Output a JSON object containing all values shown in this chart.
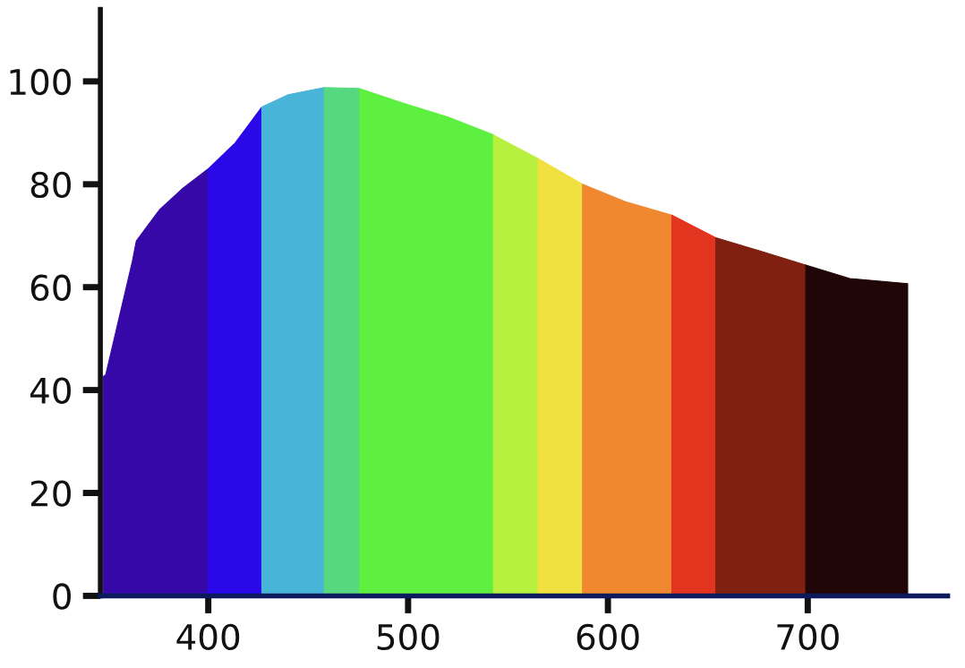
{
  "chart_data": {
    "type": "area",
    "series": [
      {
        "color": "#3608a8",
        "x": [
          347.4,
          348.7,
          362,
          364,
          375.5,
          386.6,
          400
        ],
        "values": [
          42.6,
          43,
          65,
          69,
          75,
          79,
          83
        ]
      },
      {
        "color": "#2a08e8",
        "x": [
          400,
          413.4,
          426.8
        ],
        "values": [
          83,
          88,
          95
        ]
      },
      {
        "color": "#48b4d8",
        "x": [
          426.8,
          440,
          458
        ],
        "values": [
          95,
          97.4,
          98.8
        ]
      },
      {
        "color": "#55d880",
        "x": [
          458,
          475.8
        ],
        "values": [
          98.8,
          98.6
        ]
      },
      {
        "color": "#5ef040",
        "x": [
          475.8,
          498,
          520.4,
          542.7
        ],
        "values": [
          98.6,
          95.7,
          93,
          89.6
        ]
      },
      {
        "color": "#b8f040",
        "x": [
          542.7,
          565
        ],
        "values": [
          89.6,
          85
        ]
      },
      {
        "color": "#f0e040",
        "x": [
          565,
          587.3
        ],
        "values": [
          85,
          80
        ]
      },
      {
        "color": "#f08830",
        "x": [
          587.3,
          609.6,
          632
        ],
        "values": [
          80,
          76.5,
          74
        ]
      },
      {
        "color": "#e33420",
        "x": [
          632,
          654
        ],
        "values": [
          74,
          69.6
        ]
      },
      {
        "color": "#802010",
        "x": [
          654,
          676.5,
          699
        ],
        "values": [
          69.6,
          67,
          64.3
        ]
      },
      {
        "color": "#200606",
        "x": [
          699,
          721,
          750
        ],
        "values": [
          64.3,
          61.7,
          60.7
        ]
      }
    ],
    "xlim": [
      346,
      770
    ],
    "xticks": [
      400,
      500,
      600,
      700
    ],
    "ylim": [
      0,
      114
    ],
    "yticks": [
      0,
      20,
      40,
      60,
      80,
      100
    ],
    "grid": false
  }
}
